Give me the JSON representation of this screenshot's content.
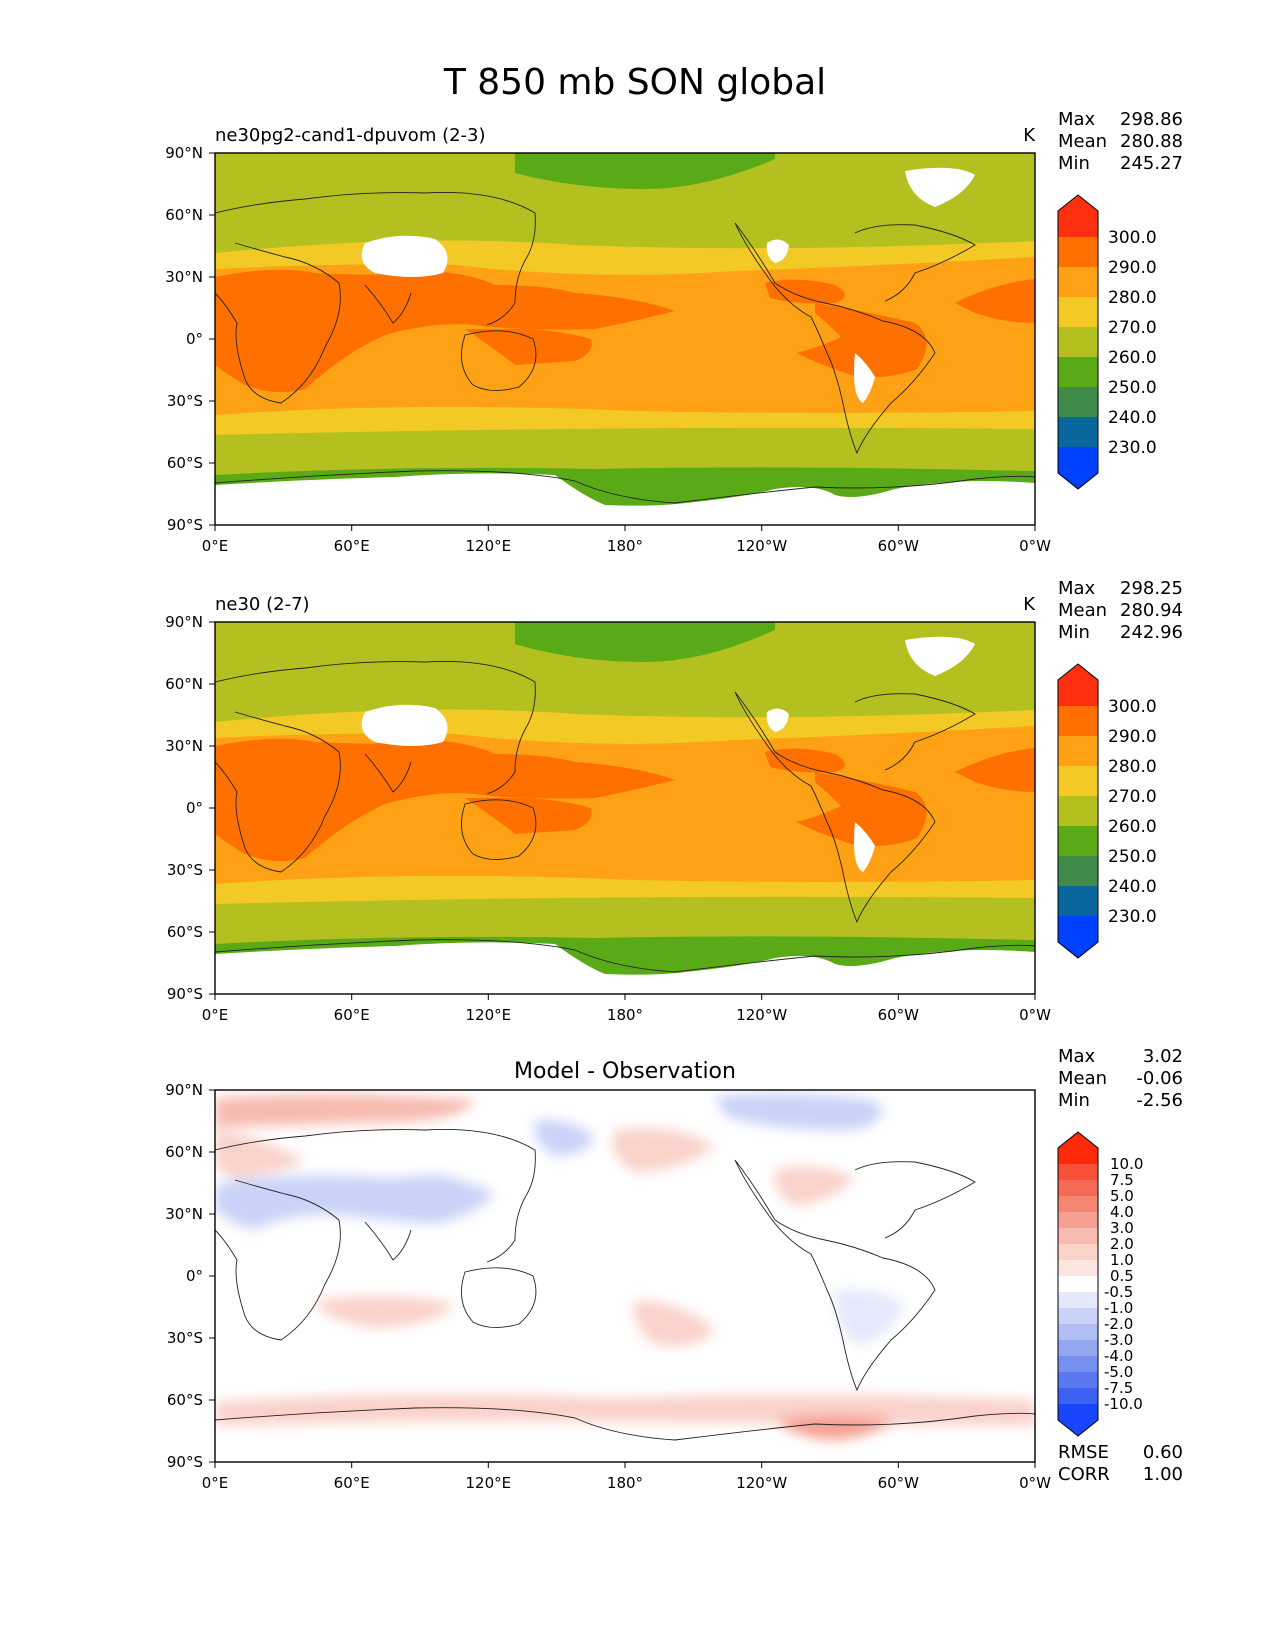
{
  "figure": {
    "title": "T 850 mb SON global"
  },
  "chart_data": [
    {
      "type": "heatmap",
      "title": "ne30pg2-cand1-dpuvom (2-3)",
      "units": "K",
      "stats": {
        "Max": "298.86",
        "Mean": "280.88",
        "Min": "245.27"
      },
      "xticks": [
        "0°E",
        "60°E",
        "120°E",
        "180°",
        "120°W",
        "60°W",
        "0°W"
      ],
      "yticks": [
        "90°N",
        "60°N",
        "30°N",
        "0°",
        "30°S",
        "60°S",
        "90°S"
      ],
      "xlim": [
        0,
        360
      ],
      "ylim": [
        -90,
        90
      ],
      "colorbar": {
        "labels": [
          "300.0",
          "290.0",
          "280.0",
          "270.0",
          "260.0",
          "250.0",
          "240.0",
          "230.0"
        ],
        "colors": [
          "#ff3010",
          "#ff7000",
          "#ffa114",
          "#f2c925",
          "#b3c020",
          "#5aaa18",
          "#3f8a48",
          "#08689e",
          "#0040ff"
        ]
      },
      "annotations": []
    },
    {
      "type": "heatmap",
      "title": "ne30 (2-7)",
      "units": "K",
      "stats": {
        "Max": "298.25",
        "Mean": "280.94",
        "Min": "242.96"
      },
      "xticks": [
        "0°E",
        "60°E",
        "120°E",
        "180°",
        "120°W",
        "60°W",
        "0°W"
      ],
      "yticks": [
        "90°N",
        "60°N",
        "30°N",
        "0°",
        "30°S",
        "60°S",
        "90°S"
      ],
      "xlim": [
        0,
        360
      ],
      "ylim": [
        -90,
        90
      ],
      "colorbar": {
        "labels": [
          "300.0",
          "290.0",
          "280.0",
          "270.0",
          "260.0",
          "250.0",
          "240.0",
          "230.0"
        ],
        "colors": [
          "#ff3010",
          "#ff7000",
          "#ffa114",
          "#f2c925",
          "#b3c020",
          "#5aaa18",
          "#3f8a48",
          "#08689e",
          "#0040ff"
        ]
      },
      "annotations": []
    },
    {
      "type": "heatmap",
      "title": "Model - Observation",
      "units": "",
      "stats": {
        "Max": "3.02",
        "Mean": "-0.06",
        "Min": "-2.56"
      },
      "xticks": [
        "0°E",
        "60°E",
        "120°E",
        "180°",
        "120°W",
        "60°W",
        "0°W"
      ],
      "yticks": [
        "90°N",
        "60°N",
        "30°N",
        "0°",
        "30°S",
        "60°S",
        "90°S"
      ],
      "xlim": [
        0,
        360
      ],
      "ylim": [
        -90,
        90
      ],
      "colorbar": {
        "labels": [
          "10.0",
          "7.5",
          "5.0",
          "4.0",
          "3.0",
          "2.0",
          "1.0",
          "0.5",
          "-0.5",
          "-1.0",
          "-2.0",
          "-3.0",
          "-4.0",
          "-5.0",
          "-7.5",
          "-10.0"
        ],
        "colors": [
          "#ff2a0a",
          "#f8503a",
          "#f56a56",
          "#f58672",
          "#f5a092",
          "#f7bab0",
          "#f9d2ca",
          "#fbe6e2",
          "#ffffff",
          "#e4e8fb",
          "#cad3f7",
          "#afbdf3",
          "#93a6f0",
          "#778fee",
          "#5a78ef",
          "#3c61f3",
          "#1a45ff"
        ]
      },
      "metrics": {
        "RMSE": "0.60",
        "CORR": "1.00"
      },
      "annotations": []
    }
  ]
}
